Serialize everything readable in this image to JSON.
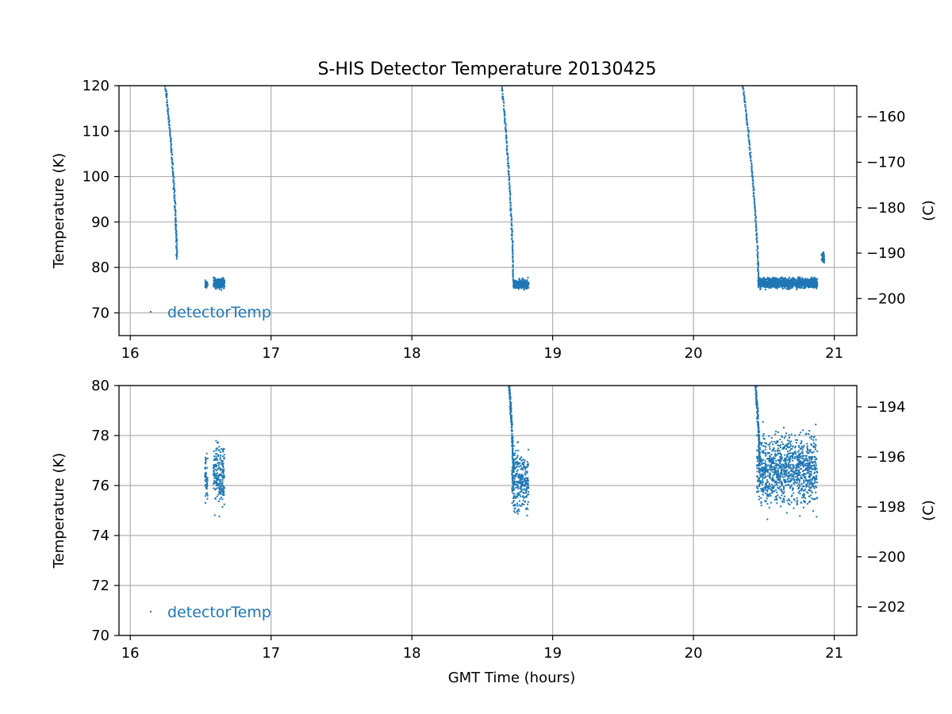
{
  "figure": {
    "title": "S-HIS Detector Temperature 20130425",
    "series_color": "#1f77b4"
  },
  "chart_data": [
    {
      "type": "scatter",
      "panel": "top",
      "xlabel": "",
      "ylabel": "Temperature (K)",
      "y2label": "(C)",
      "xlim": [
        15.92,
        21.16
      ],
      "ylim": [
        65,
        120
      ],
      "y2lim": [
        -208.15,
        -153.15
      ],
      "xticks": [
        16,
        17,
        18,
        19,
        20,
        21
      ],
      "yticks": [
        70,
        80,
        90,
        100,
        110,
        120
      ],
      "y2ticks": [
        -200,
        -190,
        -180,
        -170,
        -160
      ],
      "grid": true,
      "legend": {
        "placement": "lower-left",
        "entries": [
          "detectorTemp"
        ]
      },
      "series": [
        {
          "name": "detectorTemp",
          "segments": [
            {
              "kind": "decay",
              "x_start": 16.25,
              "x_end": 16.33,
              "y_start": 120.0,
              "y_end": 82.0
            },
            {
              "kind": "cluster",
              "x_start": 16.53,
              "x_end": 16.55,
              "y_center": 76.2,
              "y_spread": 1.0
            },
            {
              "kind": "cluster",
              "x_start": 16.59,
              "x_end": 16.67,
              "y_center": 76.5,
              "y_spread": 1.3
            },
            {
              "kind": "decay",
              "x_start": 18.64,
              "x_end": 18.72,
              "y_start": 120.0,
              "y_end": 76.5
            },
            {
              "kind": "cluster",
              "x_start": 18.72,
              "x_end": 18.83,
              "y_center": 76.3,
              "y_spread": 1.3
            },
            {
              "kind": "decay",
              "x_start": 20.35,
              "x_end": 20.46,
              "y_start": 120.0,
              "y_end": 77.0
            },
            {
              "kind": "cluster",
              "x_start": 20.46,
              "x_end": 20.88,
              "y_center": 76.6,
              "y_spread": 1.4
            },
            {
              "kind": "cluster",
              "x_start": 20.91,
              "x_end": 20.93,
              "y_center": 82.2,
              "y_spread": 1.8
            }
          ]
        }
      ]
    },
    {
      "type": "scatter",
      "panel": "bottom",
      "xlabel": "GMT Time (hours)",
      "ylabel": "Temperature (K)",
      "y2label": "(C)",
      "xlim": [
        15.92,
        21.16
      ],
      "ylim": [
        70,
        80
      ],
      "y2lim": [
        -203.15,
        -193.15
      ],
      "xticks": [
        16,
        17,
        18,
        19,
        20,
        21
      ],
      "yticks": [
        70,
        72,
        74,
        76,
        78,
        80
      ],
      "y2ticks": [
        -202,
        -200,
        -198,
        -196,
        -194
      ],
      "grid": true,
      "legend": {
        "placement": "lower-left",
        "entries": [
          "detectorTemp"
        ]
      },
      "series": [
        {
          "name": "detectorTemp",
          "segments": [
            {
              "kind": "cluster",
              "x_start": 16.53,
              "x_end": 16.55,
              "y_center": 76.3,
              "y_spread": 1.3
            },
            {
              "kind": "cluster",
              "x_start": 16.59,
              "x_end": 16.67,
              "y_center": 76.4,
              "y_spread": 1.6
            },
            {
              "kind": "decay",
              "x_start": 18.69,
              "x_end": 18.72,
              "y_start": 80.0,
              "y_end": 76.6
            },
            {
              "kind": "cluster",
              "x_start": 18.71,
              "x_end": 18.83,
              "y_center": 76.2,
              "y_spread": 1.5
            },
            {
              "kind": "decay",
              "x_start": 20.44,
              "x_end": 20.47,
              "y_start": 80.0,
              "y_end": 76.8
            },
            {
              "kind": "cluster",
              "x_start": 20.45,
              "x_end": 20.88,
              "y_center": 76.6,
              "y_spread": 1.7
            }
          ]
        }
      ]
    }
  ]
}
